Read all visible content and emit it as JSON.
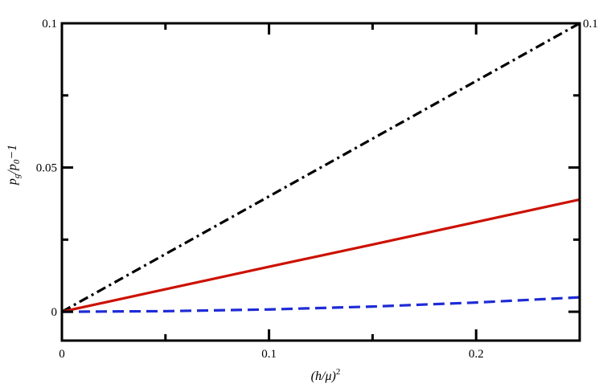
{
  "chart_data": {
    "type": "line",
    "title": "",
    "xlabel": {
      "base": "(h/μ)",
      "sup": "2"
    },
    "ylabel": {
      "p": "p",
      "g": "g",
      "slash": "/",
      "p0": "p",
      "zero": "0",
      "minus": "−1"
    },
    "xlim": [
      0,
      0.25
    ],
    "ylim": [
      -0.01,
      0.1
    ],
    "xticks": [
      {
        "value": 0,
        "label": "0"
      },
      {
        "value": 0.1,
        "label": "0.1"
      },
      {
        "value": 0.2,
        "label": "0.2"
      }
    ],
    "yticks": [
      {
        "value": 0,
        "label": "0"
      },
      {
        "value": 0.05,
        "label": "0.05"
      },
      {
        "value": 0.1,
        "label": "0.1"
      }
    ],
    "right_ytick_label": {
      "value": 0.1,
      "label": "0.1"
    },
    "grid": false,
    "legend": "none",
    "series": [
      {
        "color": "#000000",
        "style": "dashdot",
        "x": [
          0,
          0.05,
          0.1,
          0.15,
          0.2,
          0.25
        ],
        "y": [
          0,
          0.02,
          0.04,
          0.06,
          0.08,
          0.1
        ]
      },
      {
        "color": "#cc1100",
        "style": "solid",
        "x": [
          0,
          0.05,
          0.1,
          0.15,
          0.2,
          0.25
        ],
        "y": [
          0,
          0.0078,
          0.0156,
          0.0233,
          0.0311,
          0.0389
        ]
      },
      {
        "color": "#1f2bd6",
        "style": "dashed",
        "x": [
          0,
          0.05,
          0.1,
          0.15,
          0.2,
          0.25
        ],
        "y": [
          0,
          0.0002,
          0.0008,
          0.0018,
          0.0032,
          0.005
        ]
      }
    ]
  }
}
